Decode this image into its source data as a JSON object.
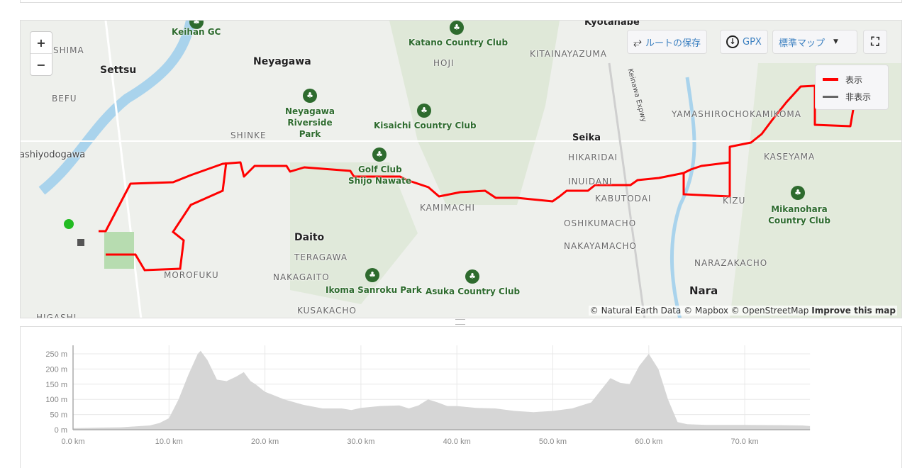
{
  "map": {
    "zoom_in": "+",
    "zoom_out": "−",
    "buttons": {
      "save_route": "ルートの保存",
      "gpx": "GPX",
      "map_style": "標準マップ"
    },
    "legend": [
      {
        "label": "表示",
        "color": "#ff0000"
      },
      {
        "label": "非表示",
        "color": "#666666"
      }
    ],
    "route_color": "#ff0000",
    "labels": {
      "cities": [
        "Settsu",
        "Neyagawa",
        "Seika",
        "Daito",
        "Nara",
        "Kyotanabe"
      ],
      "districts": [
        "SHIMA",
        "BEFU",
        "SHINKE",
        "HOJI",
        "KITAINAYAZUMA",
        "HIKARIDAI",
        "INUIDANI",
        "KABUTODAI",
        "KAMIMACHI",
        "OSHIKUMACHO",
        "NAKAYAMACHO",
        "TERAGAWA",
        "MOROFUKU",
        "NAKAGAITO",
        "KUSAKACHO",
        "NARAZAKACHO",
        "KIZU",
        "KASEYAMA",
        "YAMASHIROCHOKAMIKOMA",
        "HIGASHI",
        "ashiyodogawa",
        "Keinawa Expwy"
      ],
      "parks": [
        "Keihan GC",
        "Katano Country Club",
        "Neyagawa Riverside Park",
        "Kisaichi Country Club",
        "Golf Club",
        "Shijo Nawate",
        "Mikanohara Country Club",
        "Ikoma Sanroku Park",
        "Asuka Country Club"
      ]
    },
    "attribution": "© Natural Earth Data © Mapbox © OpenStreetMap",
    "improve": "Improve this map"
  },
  "chart_data": {
    "type": "area",
    "xlabel": "",
    "ylabel": "",
    "xlim": [
      0,
      76.8
    ],
    "ylim": [
      0,
      270
    ],
    "x_ticks": [
      "0.0 km",
      "10.0 km",
      "20.0 km",
      "30.0 km",
      "40.0 km",
      "50.0 km",
      "60.0 km",
      "70.0 km"
    ],
    "y_ticks": [
      "0 m",
      "50 m",
      "100 m",
      "150 m",
      "200 m",
      "250 m"
    ],
    "grid": true,
    "fill_color": "#d6d6d6",
    "x": [
      0,
      3,
      5,
      8,
      9,
      10,
      11,
      12,
      13,
      13.3,
      14,
      15,
      16,
      17,
      17.8,
      18.5,
      19,
      20,
      22,
      24,
      26,
      28,
      29,
      30,
      32,
      34,
      35,
      36,
      37,
      38,
      39,
      40,
      42,
      44,
      46,
      48,
      50,
      52,
      54,
      55,
      56,
      57,
      58,
      59,
      60,
      61,
      62,
      63,
      64,
      66,
      70,
      74,
      76,
      76.8
    ],
    "y": [
      5,
      7,
      8,
      14,
      22,
      38,
      100,
      180,
      250,
      260,
      230,
      165,
      160,
      175,
      190,
      160,
      150,
      125,
      100,
      82,
      70,
      70,
      65,
      72,
      78,
      80,
      70,
      80,
      100,
      90,
      78,
      78,
      72,
      70,
      62,
      58,
      62,
      70,
      90,
      130,
      170,
      155,
      150,
      210,
      250,
      200,
      100,
      25,
      18,
      16,
      16,
      15,
      14,
      12
    ]
  }
}
